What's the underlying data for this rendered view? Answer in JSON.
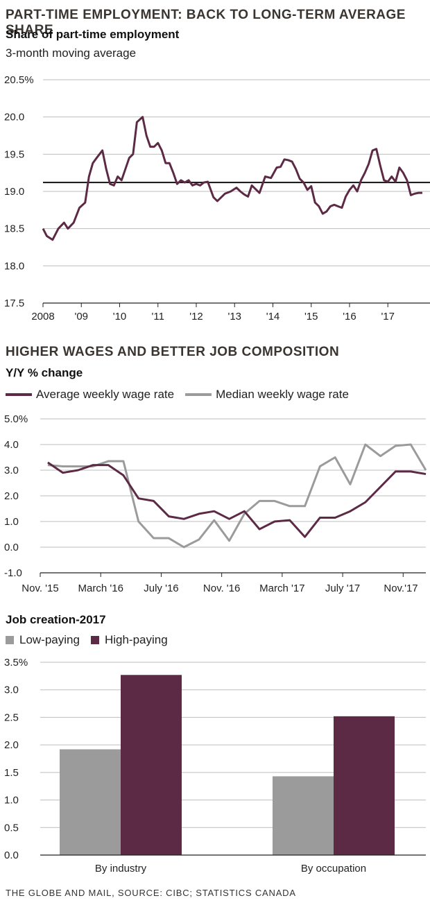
{
  "colors": {
    "purple": "#5c2a45",
    "gray": "#9b9b9b",
    "grid": "#bdbdbd"
  },
  "chart_data": [
    {
      "type": "line",
      "title": "PART-TIME EMPLOYMENT: BACK TO LONG-TERM AVERAGE SHARE",
      "subtitle": "Share of part-time employment",
      "note": "3-month moving average",
      "ylim": [
        17.5,
        20.5
      ],
      "yticks": [
        "20.5%",
        "20.0",
        "19.5",
        "19.0",
        "18.5",
        "18.0",
        "17.5"
      ],
      "xlim": [
        2008,
        2018.1
      ],
      "xticks": [
        "2008",
        "'09",
        "'10",
        "'11",
        "'12",
        "'13",
        "'14",
        "'15",
        "'16",
        "'17"
      ],
      "reference_line": 19.12,
      "grid": true,
      "series": [
        {
          "x": [
            2008.0,
            2008.1,
            2008.25,
            2008.4,
            2008.55,
            2008.65,
            2008.8,
            2008.95,
            2009.1,
            2009.2,
            2009.3,
            2009.4,
            2009.55,
            2009.65,
            2009.75,
            2009.85,
            2009.95,
            2010.05,
            2010.15,
            2010.25,
            2010.35,
            2010.45,
            2010.6,
            2010.7,
            2010.8,
            2010.9,
            2011.0,
            2011.1,
            2011.2,
            2011.3,
            2011.4,
            2011.5,
            2011.6,
            2011.7,
            2011.8,
            2011.9,
            2012.0,
            2012.1,
            2012.2,
            2012.3,
            2012.45,
            2012.55,
            2012.65,
            2012.75,
            2012.9,
            2013.05,
            2013.15,
            2013.25,
            2013.35,
            2013.45,
            2013.55,
            2013.65,
            2013.8,
            2013.95,
            2014.1,
            2014.2,
            2014.3,
            2014.4,
            2014.5,
            2014.6,
            2014.7,
            2014.8,
            2014.9,
            2015.0,
            2015.1,
            2015.2,
            2015.3,
            2015.4,
            2015.5,
            2015.6,
            2015.7,
            2015.8,
            2015.9,
            2016.0,
            2016.1,
            2016.2,
            2016.3,
            2016.4,
            2016.5,
            2016.6,
            2016.7,
            2016.8,
            2016.9,
            2017.0,
            2017.1,
            2017.2,
            2017.3,
            2017.4,
            2017.5,
            2017.6,
            2017.7,
            2017.8,
            2017.9
          ],
          "values": [
            18.5,
            18.4,
            18.35,
            18.5,
            18.58,
            18.5,
            18.58,
            18.78,
            18.85,
            19.2,
            19.38,
            19.45,
            19.55,
            19.3,
            19.1,
            19.08,
            19.2,
            19.15,
            19.3,
            19.45,
            19.5,
            19.93,
            20.0,
            19.75,
            19.6,
            19.6,
            19.65,
            19.55,
            19.38,
            19.38,
            19.25,
            19.1,
            19.15,
            19.12,
            19.15,
            19.08,
            19.1,
            19.08,
            19.12,
            19.13,
            18.92,
            18.87,
            18.92,
            18.97,
            19.0,
            19.05,
            19.0,
            18.96,
            18.93,
            19.08,
            19.03,
            18.98,
            19.2,
            19.18,
            19.32,
            19.33,
            19.43,
            19.42,
            19.4,
            19.3,
            19.17,
            19.12,
            19.02,
            19.07,
            18.85,
            18.8,
            18.7,
            18.73,
            18.8,
            18.82,
            18.8,
            18.78,
            18.93,
            19.02,
            19.08,
            19.0,
            19.15,
            19.25,
            19.37,
            19.55,
            19.57,
            19.35,
            19.15,
            19.13,
            19.2,
            19.13,
            19.32,
            19.25,
            19.15,
            18.95,
            18.97,
            18.98,
            18.98
          ]
        }
      ]
    },
    {
      "type": "line",
      "title": "HIGHER WAGES AND BETTER JOB COMPOSITION",
      "subtitle": "Y/Y % change",
      "ylim": [
        -1.0,
        5.0
      ],
      "yticks": [
        "5.0%",
        "4.0",
        "3.0",
        "2.0",
        "1.0",
        "0.0",
        "-1.0"
      ],
      "xticks": [
        "Nov. '15",
        "March '16",
        "July '16",
        "Nov. '16",
        "March '17",
        "July '17",
        "Nov.'17"
      ],
      "xtick_positions": [
        0,
        4,
        8,
        12,
        16,
        20,
        24
      ],
      "xlim": [
        0,
        25.5
      ],
      "grid": true,
      "series": [
        {
          "name": "Average weekly wage rate",
          "color": "#5c2a45",
          "x": [
            0.5,
            1.5,
            2.5,
            3.5,
            4.5,
            5.5,
            6.5,
            7.5,
            8.5,
            9.5,
            10.5,
            11.5,
            12.5,
            13.5,
            14.5,
            15.5,
            16.5,
            17.5,
            18.5,
            19.5,
            20.5,
            21.5,
            22.5,
            23.5,
            24.5,
            25.5
          ],
          "values": [
            3.3,
            2.9,
            3.0,
            3.2,
            3.2,
            2.8,
            1.9,
            1.8,
            1.2,
            1.1,
            1.3,
            1.4,
            1.1,
            1.4,
            0.7,
            1.0,
            1.05,
            0.4,
            1.15,
            1.15,
            1.4,
            1.75,
            2.35,
            2.95,
            2.95,
            2.85
          ]
        },
        {
          "name": "Median weekly wage rate",
          "color": "#9b9b9b",
          "x": [
            0.5,
            1.5,
            2.5,
            3.5,
            4.5,
            5.5,
            6.5,
            7.5,
            8.5,
            9.5,
            10.5,
            11.5,
            12.5,
            13.5,
            14.5,
            15.5,
            16.5,
            17.5,
            18.5,
            19.5,
            20.5,
            21.5,
            22.5,
            23.5,
            24.5,
            25.5
          ],
          "values": [
            3.2,
            3.15,
            3.15,
            3.15,
            3.35,
            3.35,
            1.0,
            0.35,
            0.35,
            0.0,
            0.3,
            1.05,
            0.25,
            1.3,
            1.8,
            1.8,
            1.6,
            1.6,
            3.15,
            3.5,
            2.45,
            4.0,
            3.55,
            3.95,
            4.0,
            3.0
          ]
        }
      ]
    },
    {
      "type": "bar",
      "title": "Job creation-2017",
      "categories": [
        "By industry",
        "By occupation"
      ],
      "ylim": [
        0,
        3.5
      ],
      "yticks": [
        "3.5%",
        "3.0",
        "2.5",
        "2.0",
        "1.5",
        "1.0",
        "0.5",
        "0.0"
      ],
      "grid": true,
      "series": [
        {
          "name": "Low-paying",
          "color": "#9b9b9b",
          "values": [
            1.92,
            1.43
          ]
        },
        {
          "name": "High-paying",
          "color": "#5c2a45",
          "values": [
            3.27,
            2.52
          ]
        }
      ]
    }
  ],
  "footer": "THE GLOBE AND MAIL, SOURCE: CIBC; STATISTICS CANADA"
}
